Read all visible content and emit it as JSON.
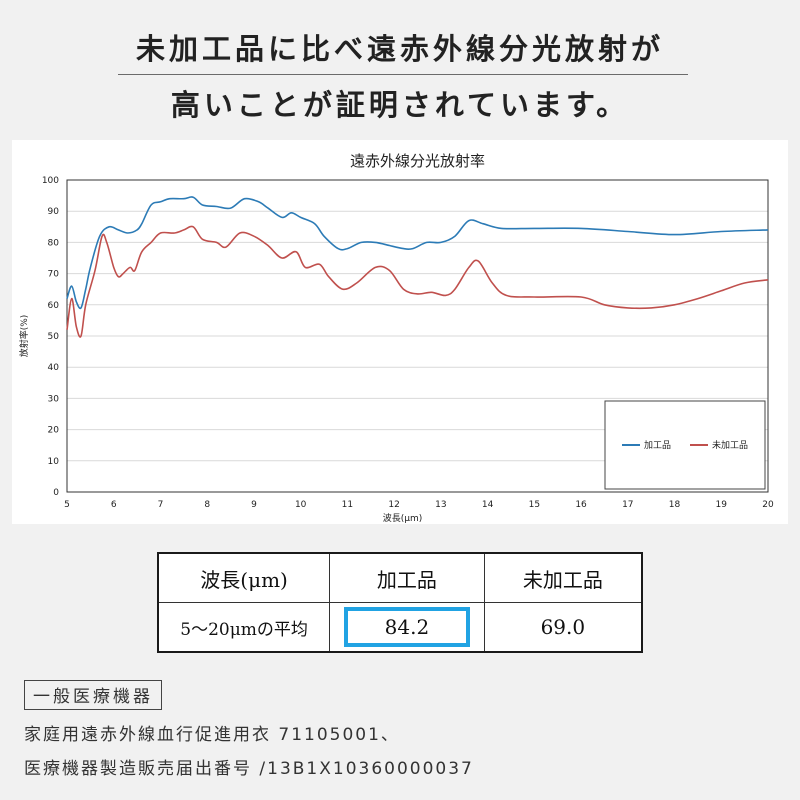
{
  "heading": {
    "line1": "未加工品に比べ遠赤外線分光放射が",
    "line2": "高いことが証明されています。"
  },
  "chart_data": {
    "type": "line",
    "title": "遠赤外線分光放射率",
    "xlabel": "波長(μm)",
    "ylabel": "放射率(%)",
    "xlim": [
      5,
      20
    ],
    "ylim": [
      0,
      100
    ],
    "x_ticks": [
      "5",
      "6",
      "7",
      "8",
      "9",
      "10",
      "11",
      "12",
      "13",
      "14",
      "15",
      "16",
      "17",
      "18",
      "19",
      "20"
    ],
    "y_ticks": [
      "0",
      "10",
      "20",
      "30",
      "40",
      "50",
      "60",
      "70",
      "80",
      "90",
      "100"
    ],
    "grid": true,
    "legend_position": "bottom-right",
    "series": [
      {
        "name": "加工品",
        "color": "#2c7bb6",
        "points": [
          [
            5,
            62
          ],
          [
            5.1,
            66
          ],
          [
            5.2,
            61
          ],
          [
            5.3,
            59
          ],
          [
            5.4,
            65
          ],
          [
            5.5,
            72
          ],
          [
            5.7,
            82
          ],
          [
            5.9,
            85
          ],
          [
            6.1,
            84
          ],
          [
            6.3,
            83
          ],
          [
            6.5,
            84
          ],
          [
            6.6,
            86
          ],
          [
            6.8,
            92
          ],
          [
            7.0,
            93
          ],
          [
            7.2,
            94
          ],
          [
            7.5,
            94
          ],
          [
            7.7,
            94.5
          ],
          [
            7.9,
            92
          ],
          [
            8.2,
            91.5
          ],
          [
            8.5,
            91
          ],
          [
            8.8,
            94
          ],
          [
            9.1,
            93
          ],
          [
            9.3,
            91
          ],
          [
            9.6,
            88
          ],
          [
            9.8,
            89.5
          ],
          [
            10.0,
            88
          ],
          [
            10.3,
            86
          ],
          [
            10.5,
            82
          ],
          [
            10.8,
            78
          ],
          [
            11.0,
            78
          ],
          [
            11.3,
            80
          ],
          [
            11.6,
            80
          ],
          [
            11.9,
            79
          ],
          [
            12.2,
            78
          ],
          [
            12.4,
            78
          ],
          [
            12.7,
            80
          ],
          [
            13.0,
            80
          ],
          [
            13.3,
            82
          ],
          [
            13.6,
            87
          ],
          [
            13.9,
            86
          ],
          [
            14.3,
            84.5
          ],
          [
            15,
            84.5
          ],
          [
            16,
            84.5
          ],
          [
            17,
            83.5
          ],
          [
            18,
            82.5
          ],
          [
            19,
            83.5
          ],
          [
            20,
            84
          ]
        ]
      },
      {
        "name": "未加工品",
        "color": "#c0504d",
        "points": [
          [
            5,
            52
          ],
          [
            5.1,
            62
          ],
          [
            5.2,
            53
          ],
          [
            5.3,
            50
          ],
          [
            5.4,
            60
          ],
          [
            5.6,
            71
          ],
          [
            5.75,
            82
          ],
          [
            5.85,
            80
          ],
          [
            6.0,
            72
          ],
          [
            6.1,
            69
          ],
          [
            6.2,
            70
          ],
          [
            6.35,
            72
          ],
          [
            6.45,
            71
          ],
          [
            6.6,
            77
          ],
          [
            6.8,
            80
          ],
          [
            7.0,
            83
          ],
          [
            7.3,
            83
          ],
          [
            7.5,
            84
          ],
          [
            7.7,
            85
          ],
          [
            7.9,
            81
          ],
          [
            8.2,
            80
          ],
          [
            8.4,
            78.5
          ],
          [
            8.7,
            83
          ],
          [
            9.0,
            82
          ],
          [
            9.3,
            79
          ],
          [
            9.6,
            75
          ],
          [
            9.9,
            77
          ],
          [
            10.1,
            72
          ],
          [
            10.4,
            73
          ],
          [
            10.6,
            69
          ],
          [
            10.9,
            65
          ],
          [
            11.2,
            67
          ],
          [
            11.6,
            72
          ],
          [
            11.9,
            71
          ],
          [
            12.2,
            65
          ],
          [
            12.5,
            63.5
          ],
          [
            12.8,
            64
          ],
          [
            13.1,
            63
          ],
          [
            13.3,
            65
          ],
          [
            13.6,
            72
          ],
          [
            13.8,
            74
          ],
          [
            14.1,
            67
          ],
          [
            14.4,
            63
          ],
          [
            15,
            62.5
          ],
          [
            16,
            62.5
          ],
          [
            16.5,
            60
          ],
          [
            17,
            59
          ],
          [
            17.5,
            59
          ],
          [
            18,
            60
          ],
          [
            18.5,
            62
          ],
          [
            19,
            64.5
          ],
          [
            19.5,
            67
          ],
          [
            20,
            68
          ]
        ]
      }
    ]
  },
  "table": {
    "headers": [
      "波長(μm)",
      "加工品",
      "未加工品"
    ],
    "row_label": "5〜20μmの平均",
    "processed_value": "84.2",
    "unprocessed_value": "69.0"
  },
  "footer": {
    "badge": "一般医療機器",
    "line1": "家庭用遠赤外線血行促進用衣 71105001、",
    "line2": "医療機器製造販売届出番号 /13B1X10360000037"
  }
}
